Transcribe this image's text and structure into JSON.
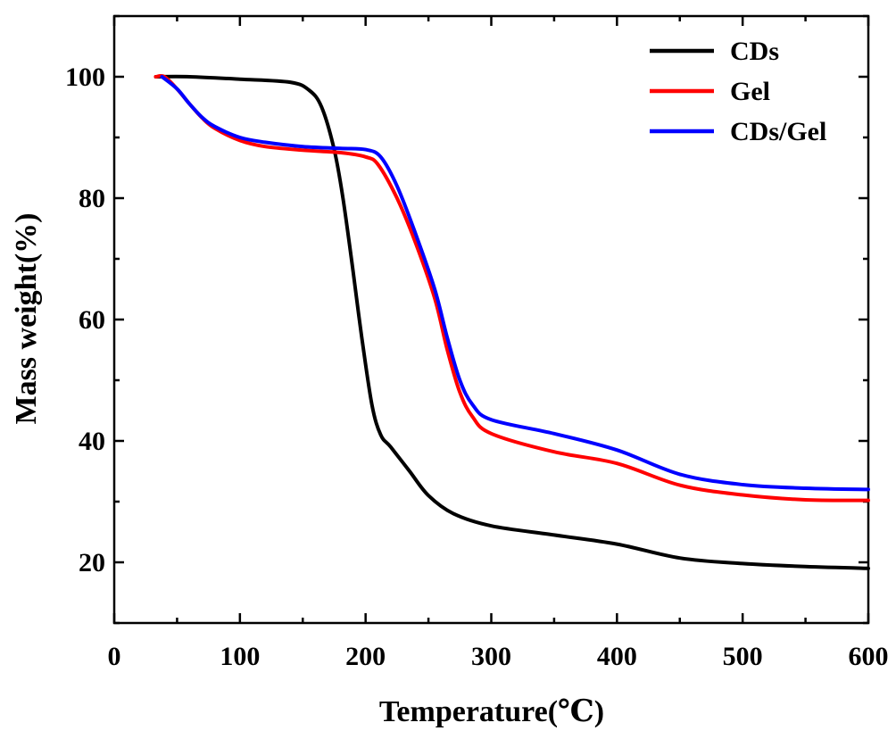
{
  "chart_data": {
    "type": "line",
    "title": "",
    "xlabel": "Temperature(℃)",
    "ylabel": "Mass weight(%)",
    "xlim": [
      0,
      600
    ],
    "ylim": [
      10,
      110
    ],
    "xticks": [
      0,
      100,
      200,
      300,
      400,
      500,
      600
    ],
    "yticks": [
      20,
      40,
      60,
      80,
      100
    ],
    "grid": false,
    "legend_position": "top-right",
    "series": [
      {
        "name": "CDs",
        "color": "#000000",
        "points": [
          [
            33,
            100
          ],
          [
            60,
            100
          ],
          [
            100,
            99.6
          ],
          [
            140,
            99.1
          ],
          [
            155,
            97.8
          ],
          [
            165,
            95
          ],
          [
            175,
            88
          ],
          [
            182,
            80
          ],
          [
            190,
            68
          ],
          [
            197,
            57
          ],
          [
            205,
            46
          ],
          [
            212,
            41
          ],
          [
            220,
            39
          ],
          [
            235,
            35
          ],
          [
            250,
            31
          ],
          [
            270,
            28
          ],
          [
            300,
            26
          ],
          [
            350,
            24.5
          ],
          [
            400,
            23
          ],
          [
            450,
            20.7
          ],
          [
            500,
            19.8
          ],
          [
            550,
            19.3
          ],
          [
            600,
            19
          ]
        ]
      },
      {
        "name": "Gel",
        "color": "#ff0000",
        "points": [
          [
            33,
            100
          ],
          [
            40,
            100
          ],
          [
            50,
            98
          ],
          [
            60,
            95.5
          ],
          [
            70,
            93.2
          ],
          [
            80,
            91.5
          ],
          [
            100,
            89.5
          ],
          [
            120,
            88.5
          ],
          [
            150,
            87.9
          ],
          [
            180,
            87.5
          ],
          [
            200,
            86.8
          ],
          [
            210,
            85.5
          ],
          [
            225,
            80
          ],
          [
            240,
            72.5
          ],
          [
            255,
            63.5
          ],
          [
            265,
            55
          ],
          [
            275,
            48
          ],
          [
            285,
            44
          ],
          [
            300,
            41.2
          ],
          [
            350,
            38.2
          ],
          [
            400,
            36.3
          ],
          [
            450,
            32.7
          ],
          [
            500,
            31.1
          ],
          [
            550,
            30.3
          ],
          [
            600,
            30.2
          ]
        ]
      },
      {
        "name": "CDs/Gel",
        "color": "#0000ff",
        "points": [
          [
            38,
            100
          ],
          [
            50,
            98
          ],
          [
            60,
            95.5
          ],
          [
            70,
            93.3
          ],
          [
            80,
            91.8
          ],
          [
            100,
            90
          ],
          [
            120,
            89.2
          ],
          [
            150,
            88.5
          ],
          [
            180,
            88.2
          ],
          [
            200,
            88
          ],
          [
            212,
            86.8
          ],
          [
            225,
            82
          ],
          [
            240,
            74
          ],
          [
            255,
            65
          ],
          [
            265,
            57
          ],
          [
            275,
            50
          ],
          [
            285,
            46
          ],
          [
            300,
            43.5
          ],
          [
            350,
            41.2
          ],
          [
            400,
            38.5
          ],
          [
            450,
            34.5
          ],
          [
            500,
            32.8
          ],
          [
            550,
            32.2
          ],
          [
            600,
            32
          ]
        ]
      }
    ]
  }
}
